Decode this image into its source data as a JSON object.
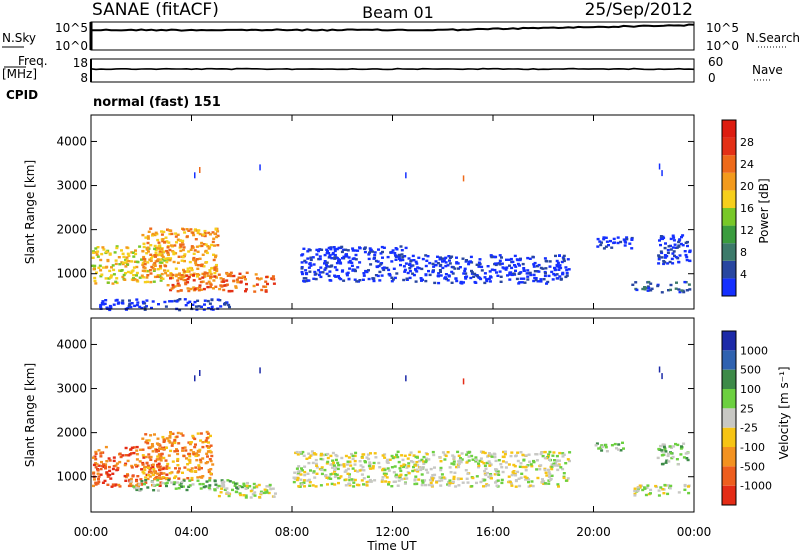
{
  "header": {
    "station": "SANAE (fitACF)",
    "beam": "Beam 01",
    "date": "25/Sep/2012"
  },
  "status_panels": {
    "nsky_label": "N.Sky",
    "nsky_ticks": [
      "10^5",
      "10^0"
    ],
    "nsearch_label": "N.Search",
    "nsearch_ticks": [
      "10^5",
      "10^0"
    ],
    "freq_label_1": "Freq.",
    "freq_label_2": "[MHz]",
    "freq_ticks": [
      "18",
      "8"
    ],
    "nave_label": "Nave",
    "nave_ticks": [
      "60",
      "0"
    ],
    "cpid_label": "CPID",
    "cpid_value": "normal (fast) 151"
  },
  "chart_data": [
    {
      "type": "heatmap",
      "name": "power",
      "ylabel": "Slant Range [km]",
      "xlabel": "Time UT",
      "x_ticks": [
        "00:00",
        "04:00",
        "08:00",
        "12:00",
        "16:00",
        "20:00",
        "00:00"
      ],
      "x_range_hours": [
        0,
        24
      ],
      "ylim": [
        200,
        4600
      ],
      "y_ticks": [
        1000,
        2000,
        3000,
        4000
      ],
      "colorbar": {
        "label": "Power [dB]",
        "ticks": [
          "4",
          "8",
          "12",
          "16",
          "20",
          "24",
          "28"
        ],
        "colors": [
          "#1530ff",
          "#2846a0",
          "#3c7a6a",
          "#3a9c3e",
          "#78c828",
          "#f6cf1c",
          "#f39a1c",
          "#ee6a1a",
          "#e33016",
          "#dd1c10"
        ]
      },
      "echo_regions": [
        {
          "t0": 0.0,
          "t1": 3.0,
          "r0": 800,
          "r1": 1650,
          "level": 5
        },
        {
          "t0": 2.0,
          "t1": 5.0,
          "r0": 950,
          "r1": 2050,
          "level": 6
        },
        {
          "t0": 3.0,
          "t1": 7.3,
          "r0": 620,
          "r1": 1050,
          "level": 7
        },
        {
          "t0": 0.3,
          "t1": 5.5,
          "r0": 200,
          "r1": 450,
          "level": 0
        },
        {
          "t0": 8.3,
          "t1": 12.5,
          "r0": 850,
          "r1": 1650,
          "level": 0
        },
        {
          "t0": 12.5,
          "t1": 19.0,
          "r0": 800,
          "r1": 1450,
          "level": 0
        },
        {
          "t0": 21.5,
          "t1": 23.8,
          "r0": 600,
          "r1": 850,
          "level": 1
        },
        {
          "t0": 22.5,
          "t1": 23.8,
          "r0": 1250,
          "r1": 1900,
          "level": 0
        },
        {
          "t0": 20.0,
          "t1": 21.5,
          "r0": 1600,
          "r1": 1850,
          "level": 0
        }
      ]
    },
    {
      "type": "heatmap",
      "name": "velocity",
      "ylabel": "Slant Range [km]",
      "xlabel": "Time UT",
      "x_ticks": [
        "00:00",
        "04:00",
        "08:00",
        "12:00",
        "16:00",
        "20:00",
        "00:00"
      ],
      "x_range_hours": [
        0,
        24
      ],
      "ylim": [
        200,
        4600
      ],
      "y_ticks": [
        1000,
        2000,
        3000,
        4000
      ],
      "colorbar": {
        "label": "Velocity [m s⁻¹]",
        "ticks": [
          "1000",
          "500",
          "100",
          "25",
          "-25",
          "-100",
          "-500",
          "-1000"
        ],
        "colors": [
          "#1c2aa8",
          "#2f62b0",
          "#3d8a48",
          "#6cd040",
          "#c8c8c4",
          "#f6c414",
          "#f39220",
          "#ee5e1e",
          "#e42c16"
        ]
      },
      "echo_regions": [
        {
          "t0": 0.0,
          "t1": 3.0,
          "r0": 800,
          "r1": 1700,
          "level": 7
        },
        {
          "t0": 2.0,
          "t1": 4.8,
          "r0": 950,
          "r1": 2050,
          "level": 6
        },
        {
          "t0": 1.5,
          "t1": 6.5,
          "r0": 700,
          "r1": 950,
          "level": 3
        },
        {
          "t0": 5.0,
          "t1": 7.3,
          "r0": 550,
          "r1": 850,
          "level": 4
        },
        {
          "t0": 8.0,
          "t1": 19.0,
          "r0": 800,
          "r1": 1600,
          "level": 4
        },
        {
          "t0": 21.5,
          "t1": 23.8,
          "r0": 600,
          "r1": 850,
          "level": 4
        },
        {
          "t0": 22.5,
          "t1": 23.8,
          "r0": 1300,
          "r1": 1800,
          "level": 3
        },
        {
          "t0": 20.0,
          "t1": 21.2,
          "r0": 1600,
          "r1": 1800,
          "level": 3
        }
      ]
    }
  ]
}
